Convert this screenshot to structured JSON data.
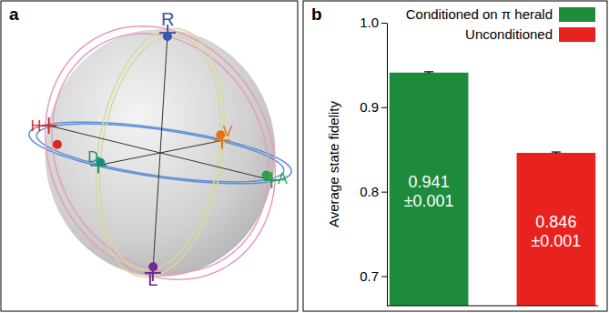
{
  "chart_data": {
    "type": "bar",
    "panel_label": "b",
    "y_label": "Average state fidelity",
    "categories": [
      null,
      null
    ],
    "series": [
      {
        "name": "Conditioned on π herald",
        "color": "#1e8a3c",
        "values": [
          0.941,
          null
        ],
        "errors": [
          0.001,
          null
        ],
        "value_labels": [
          "0.941",
          null
        ],
        "error_labels": [
          "±0.001",
          null
        ]
      },
      {
        "name": "Unconditioned",
        "color": "#e8231f",
        "values": [
          null,
          0.846
        ],
        "errors": [
          null,
          0.001
        ],
        "value_labels": [
          null,
          "0.846"
        ],
        "error_labels": [
          null,
          "±0.001"
        ]
      }
    ],
    "ylim": [
      0.665,
      1.0
    ],
    "yticks": [
      0.7,
      0.8,
      0.9,
      {
        "value": 1.0,
        "label": "1.0"
      }
    ],
    "data_labels": true,
    "legend": "top-right",
    "grid": false
  },
  "diagram": {
    "panel_label": "a",
    "states": [
      {
        "label": "R",
        "color": "#3a55b0"
      },
      {
        "label": "L",
        "color": "#6b2d92"
      },
      {
        "label": "H",
        "color": "#d92a1e"
      },
      {
        "label": "V",
        "color": "#e0741c"
      },
      {
        "label": "D",
        "color": "#1a8c7c"
      },
      {
        "label": "A",
        "color": "#2aa04a"
      }
    ]
  }
}
